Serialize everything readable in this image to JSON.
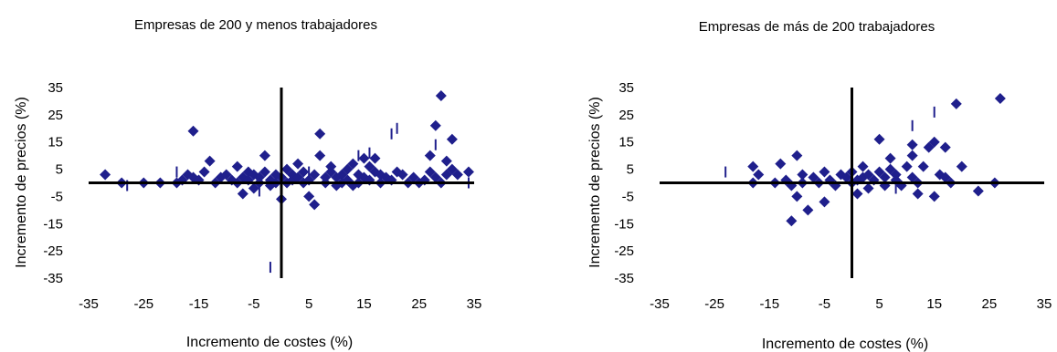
{
  "chart_data": [
    {
      "type": "scatter",
      "title": "Empresas de 200 y menos trabajadores",
      "xlabel": "Incremento de costes (%)",
      "ylabel": "Incremento de precios (%)",
      "xlim": [
        -35,
        35
      ],
      "ylim": [
        -35,
        35
      ],
      "xticks": [
        "-35",
        "-25",
        "-15",
        "-5",
        "5",
        "15",
        "25",
        "35"
      ],
      "yticks": [
        "35",
        "25",
        "15",
        "5",
        "-5",
        "-15",
        "-25",
        "-35"
      ],
      "grid": false,
      "marker_color": "#1f1f8c",
      "points": [
        [
          -32,
          3
        ],
        [
          -29,
          0
        ],
        [
          -25,
          0
        ],
        [
          -22,
          0
        ],
        [
          -19,
          0
        ],
        [
          -18,
          1
        ],
        [
          -17,
          3
        ],
        [
          -16,
          19
        ],
        [
          -16,
          2
        ],
        [
          -15,
          1
        ],
        [
          -14,
          4
        ],
        [
          -13,
          8
        ],
        [
          -12,
          0
        ],
        [
          -11,
          2
        ],
        [
          -10,
          3
        ],
        [
          -9,
          1
        ],
        [
          -8,
          6
        ],
        [
          -8,
          0
        ],
        [
          -7,
          2
        ],
        [
          -7,
          -4
        ],
        [
          -6,
          4
        ],
        [
          -6,
          1
        ],
        [
          -5,
          -2
        ],
        [
          -5,
          3
        ],
        [
          -4,
          2
        ],
        [
          -4,
          0
        ],
        [
          -3,
          10
        ],
        [
          -3,
          4
        ],
        [
          -2,
          1
        ],
        [
          -2,
          -1
        ],
        [
          -1,
          3
        ],
        [
          -1,
          0
        ],
        [
          0,
          2
        ],
        [
          0,
          -6
        ],
        [
          1,
          5
        ],
        [
          1,
          0
        ],
        [
          2,
          3
        ],
        [
          2,
          1
        ],
        [
          3,
          7
        ],
        [
          3,
          2
        ],
        [
          4,
          4
        ],
        [
          4,
          0
        ],
        [
          5,
          1
        ],
        [
          5,
          -5
        ],
        [
          6,
          -8
        ],
        [
          6,
          3
        ],
        [
          7,
          18
        ],
        [
          7,
          10
        ],
        [
          8,
          2
        ],
        [
          8,
          0
        ],
        [
          9,
          4
        ],
        [
          9,
          6
        ],
        [
          10,
          2
        ],
        [
          10,
          -1
        ],
        [
          11,
          3
        ],
        [
          11,
          0
        ],
        [
          12,
          5
        ],
        [
          12,
          1
        ],
        [
          13,
          7
        ],
        [
          13,
          -1
        ],
        [
          14,
          3
        ],
        [
          14,
          0
        ],
        [
          15,
          9
        ],
        [
          15,
          2
        ],
        [
          16,
          6
        ],
        [
          16,
          1
        ],
        [
          17,
          4
        ],
        [
          17,
          9
        ],
        [
          18,
          3
        ],
        [
          18,
          0
        ],
        [
          19,
          2
        ],
        [
          20,
          1
        ],
        [
          21,
          4
        ],
        [
          22,
          3
        ],
        [
          23,
          0
        ],
        [
          24,
          2
        ],
        [
          25,
          0
        ],
        [
          26,
          1
        ],
        [
          27,
          10
        ],
        [
          27,
          4
        ],
        [
          28,
          21
        ],
        [
          28,
          2
        ],
        [
          29,
          32
        ],
        [
          29,
          0
        ],
        [
          30,
          8
        ],
        [
          30,
          3
        ],
        [
          31,
          16
        ],
        [
          31,
          5
        ],
        [
          32,
          3
        ],
        [
          34,
          4
        ]
      ],
      "dashes": [
        [
          -28,
          -1
        ],
        [
          -19,
          4
        ],
        [
          -4,
          -3
        ],
        [
          -2,
          -31
        ],
        [
          5,
          4
        ],
        [
          14,
          10
        ],
        [
          16,
          11
        ],
        [
          20,
          18
        ],
        [
          21,
          20
        ],
        [
          28,
          14
        ],
        [
          34,
          0
        ]
      ]
    },
    {
      "type": "scatter",
      "title": "Empresas de más de 200 trabajadores",
      "xlabel": "Incremento de costes (%)",
      "ylabel": "Incremento de precios (%)",
      "xlim": [
        -35,
        35
      ],
      "ylim": [
        -35,
        35
      ],
      "xticks": [
        "-35",
        "-25",
        "-15",
        "-5",
        "5",
        "15",
        "25",
        "35"
      ],
      "yticks": [
        "35",
        "25",
        "15",
        "5",
        "-5",
        "-15",
        "-25",
        "-35"
      ],
      "grid": false,
      "marker_color": "#1f1f8c",
      "points": [
        [
          -18,
          6
        ],
        [
          -18,
          0
        ],
        [
          -17,
          3
        ],
        [
          -14,
          0
        ],
        [
          -13,
          7
        ],
        [
          -12,
          1
        ],
        [
          -11,
          -1
        ],
        [
          -10,
          10
        ],
        [
          -10,
          -5
        ],
        [
          -11,
          -14
        ],
        [
          -9,
          3
        ],
        [
          -9,
          0
        ],
        [
          -8,
          -10
        ],
        [
          -7,
          2
        ],
        [
          -6,
          0
        ],
        [
          -5,
          -7
        ],
        [
          -5,
          4
        ],
        [
          -4,
          1
        ],
        [
          -3,
          -1
        ],
        [
          -2,
          3
        ],
        [
          -1,
          2
        ],
        [
          0,
          0
        ],
        [
          0,
          4
        ],
        [
          1,
          -4
        ],
        [
          1,
          1
        ],
        [
          2,
          6
        ],
        [
          2,
          2
        ],
        [
          3,
          3
        ],
        [
          3,
          -2
        ],
        [
          4,
          1
        ],
        [
          5,
          16
        ],
        [
          5,
          4
        ],
        [
          6,
          2
        ],
        [
          6,
          -1
        ],
        [
          7,
          9
        ],
        [
          7,
          5
        ],
        [
          8,
          1
        ],
        [
          8,
          3
        ],
        [
          9,
          -1
        ],
        [
          10,
          6
        ],
        [
          11,
          14
        ],
        [
          11,
          10
        ],
        [
          11,
          2
        ],
        [
          12,
          -4
        ],
        [
          12,
          0
        ],
        [
          13,
          6
        ],
        [
          14,
          13
        ],
        [
          15,
          15
        ],
        [
          15,
          -5
        ],
        [
          16,
          3
        ],
        [
          17,
          13
        ],
        [
          17,
          2
        ],
        [
          18,
          0
        ],
        [
          19,
          29
        ],
        [
          20,
          6
        ],
        [
          23,
          -3
        ],
        [
          26,
          0
        ],
        [
          27,
          31
        ]
      ],
      "dashes": [
        [
          -23,
          4
        ],
        [
          8,
          -2
        ],
        [
          11,
          21
        ],
        [
          15,
          26
        ]
      ]
    }
  ]
}
